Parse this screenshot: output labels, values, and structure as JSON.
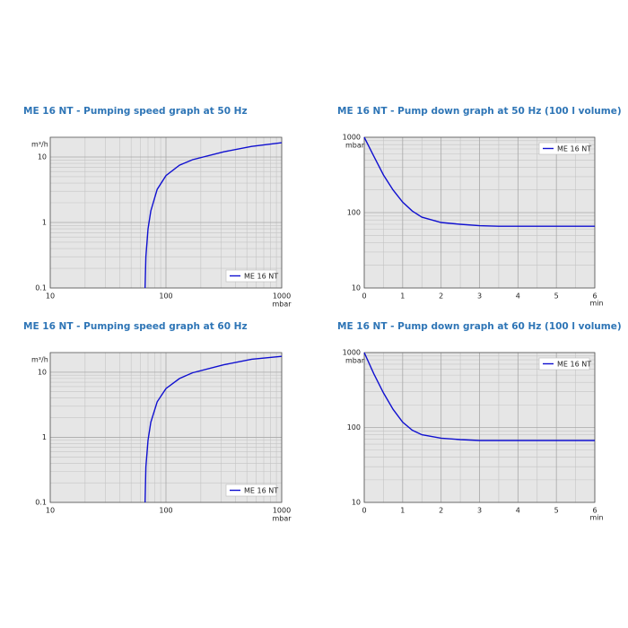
{
  "chart_data": [
    {
      "type": "line",
      "title": "ME 16 NT - Pumping speed graph at 50 Hz",
      "x_label": "mbar",
      "y_label": "m³/h",
      "xlog": true,
      "ylog": true,
      "xlim": [
        10,
        1000
      ],
      "ylim": [
        0.1,
        20
      ],
      "xticks": [
        10,
        100,
        1000
      ],
      "yticks": [
        0.1,
        1,
        10
      ],
      "grid": true,
      "legend": "lower right",
      "x": [
        66,
        67,
        70,
        74,
        84,
        100,
        131,
        170,
        316,
        550,
        1000
      ],
      "series": [
        {
          "name": "ME 16 NT",
          "color": "#1010d0",
          "values": [
            0.1,
            0.3,
            0.8,
            1.5,
            3.2,
            5.2,
            7.5,
            9.1,
            12,
            14.5,
            16.5
          ]
        }
      ]
    },
    {
      "type": "line",
      "title": "ME 16 NT - Pump down graph at 50 Hz (100 l volume)",
      "x_label": "min",
      "y_label": "mbar",
      "xlog": false,
      "ylog": true,
      "xlim": [
        0,
        6
      ],
      "ylim": [
        10,
        1000
      ],
      "xticks": [
        0,
        1,
        2,
        3,
        4,
        5,
        6
      ],
      "yticks": [
        10,
        100,
        1000
      ],
      "grid": true,
      "legend": "upper right",
      "x": [
        0,
        0.25,
        0.5,
        0.75,
        1,
        1.25,
        1.5,
        2,
        2.5,
        3,
        3.5,
        4,
        5,
        6
      ],
      "series": [
        {
          "name": "ME 16 NT",
          "color": "#1010d0",
          "values": [
            1000,
            560,
            316,
            200,
            138,
            105,
            87,
            74,
            70,
            67,
            66,
            66,
            66,
            66
          ]
        }
      ]
    },
    {
      "type": "line",
      "title": "ME 16 NT - Pumping speed graph at 60 Hz",
      "x_label": "mbar",
      "y_label": "m³/h",
      "xlog": true,
      "ylog": true,
      "xlim": [
        10,
        1000
      ],
      "ylim": [
        0.1,
        20
      ],
      "xticks": [
        10,
        100,
        1000
      ],
      "yticks": [
        0.1,
        1,
        10
      ],
      "grid": true,
      "legend": "lower right",
      "x": [
        66,
        67,
        70,
        74,
        84,
        100,
        131,
        170,
        316,
        550,
        1000
      ],
      "series": [
        {
          "name": "ME 16 NT",
          "color": "#1010d0",
          "values": [
            0.1,
            0.35,
            0.9,
            1.7,
            3.5,
            5.6,
            8,
            9.8,
            13,
            15.8,
            17.5
          ]
        }
      ]
    },
    {
      "type": "line",
      "title": "ME 16 NT - Pump down graph at 60 Hz (100 l volume)",
      "x_label": "min",
      "y_label": "mbar",
      "xlog": false,
      "ylog": true,
      "xlim": [
        0,
        6
      ],
      "ylim": [
        10,
        1000
      ],
      "xticks": [
        0,
        1,
        2,
        3,
        4,
        5,
        6
      ],
      "yticks": [
        10,
        100,
        1000
      ],
      "grid": true,
      "legend": "upper right",
      "x": [
        0,
        0.25,
        0.5,
        0.75,
        1,
        1.25,
        1.5,
        2,
        2.5,
        3,
        4,
        5,
        6
      ],
      "series": [
        {
          "name": "ME 16 NT",
          "color": "#1010d0",
          "values": [
            1000,
            520,
            290,
            175,
            118,
            92,
            80,
            72,
            69,
            67,
            67,
            67,
            67
          ]
        }
      ]
    }
  ]
}
